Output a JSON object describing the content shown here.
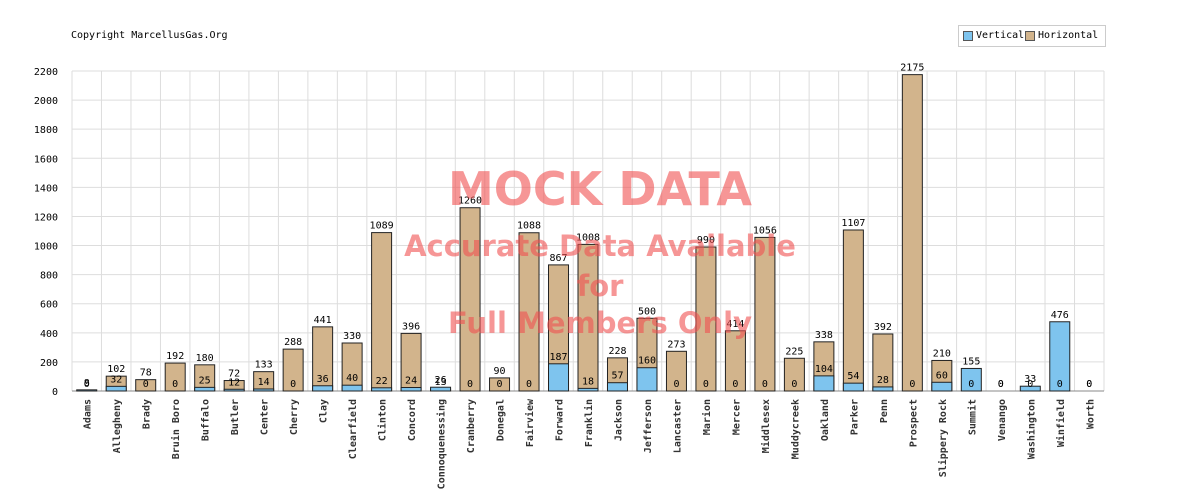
{
  "copyright": "Copyright MarcellusGas.Org",
  "watermark": {
    "line1": "MOCK DATA",
    "line2": "Accurate Data Available",
    "line3": "for",
    "line4": "Full Members Only"
  },
  "colors": {
    "vertical": "#7ec4ee",
    "horizontal": "#d2b48c",
    "grid": "#dddddd",
    "watermark": "#f05050"
  },
  "chart_data": {
    "type": "bar",
    "title": "",
    "xlabel": "",
    "ylabel": "",
    "ylim": [
      0,
      2200
    ],
    "yticks": [
      0,
      200,
      400,
      600,
      800,
      1000,
      1200,
      1400,
      1600,
      1800,
      2000,
      2200
    ],
    "grid": true,
    "legend_position": "top-right",
    "categories": [
      "Adams",
      "Allegheny",
      "Brady",
      "Bruin Boro",
      "Buffalo",
      "Butler",
      "Center",
      "Cherry",
      "Clay",
      "Clearfield",
      "Clinton",
      "Concord",
      "Connoquenessing",
      "Cranberry",
      "Donegal",
      "Fairview",
      "Forward",
      "Franklin",
      "Jackson",
      "Jefferson",
      "Lancaster",
      "Marion",
      "Mercer",
      "Middlesex",
      "Muddycreek",
      "Oakland",
      "Parker",
      "Penn",
      "Prospect",
      "Slippery Rock",
      "Summit",
      "Venango",
      "Washington",
      "Winfield",
      "Worth"
    ],
    "series": [
      {
        "name": "Vertical",
        "values": [
          8,
          32,
          0,
          0,
          25,
          12,
          14,
          0,
          36,
          40,
          22,
          24,
          26,
          0,
          0,
          0,
          187,
          18,
          57,
          160,
          0,
          0,
          0,
          0,
          0,
          104,
          54,
          28,
          0,
          60,
          155,
          0,
          33,
          476,
          0
        ]
      },
      {
        "name": "Horizontal",
        "values": [
          0,
          102,
          78,
          192,
          180,
          72,
          133,
          288,
          441,
          330,
          1089,
          396,
          13,
          1260,
          90,
          1088,
          867,
          1008,
          228,
          500,
          273,
          990,
          414,
          1056,
          225,
          338,
          1107,
          392,
          2175,
          210,
          0,
          0,
          0,
          0,
          0
        ]
      }
    ]
  }
}
